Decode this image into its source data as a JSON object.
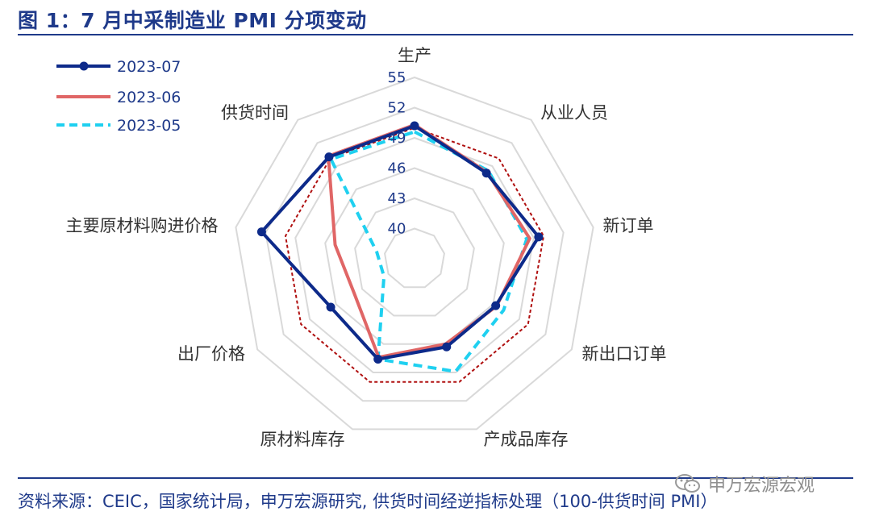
{
  "title": "图 1：7 月中采制造业 PMI 分项变动",
  "source": "资料来源：CEIC，国家统计局，申万宏源研究, 供货时间经逆指标处理（100-供货时间 PMI）",
  "watermark": "申万宏源宏观",
  "chart_data": {
    "type": "radar",
    "axes": [
      "生产",
      "从业人员",
      "新订单",
      "新出口订单",
      "产成品库存",
      "原材料库存",
      "出厂价格",
      "主要原材料购进价格",
      "供货时间"
    ],
    "range": [
      37,
      55
    ],
    "ticks": [
      40,
      43,
      46,
      49,
      52,
      55
    ],
    "series": [
      {
        "name": "2023-07",
        "color": "#0d2a8a",
        "style": "solid-marker",
        "values": [
          50.2,
          48.1,
          49.5,
          46.3,
          46.3,
          47.6,
          46.6,
          52.4,
          50.2
        ]
      },
      {
        "name": "2023-06",
        "color": "#e06666",
        "style": "solid",
        "values": [
          50.3,
          48.2,
          48.6,
          46.4,
          46.0,
          47.4,
          43.9,
          45.0,
          50.3
        ]
      },
      {
        "name": "2023-05",
        "color": "#1fd0f0",
        "style": "dashed",
        "values": [
          49.6,
          48.4,
          48.3,
          47.2,
          48.9,
          47.6,
          40.5,
          40.8,
          49.9
        ]
      },
      {
        "name": "",
        "color": "#b01010",
        "style": "dotted",
        "values": [
          50,
          50,
          50,
          50,
          50,
          50,
          50,
          50,
          50
        ]
      }
    ]
  }
}
